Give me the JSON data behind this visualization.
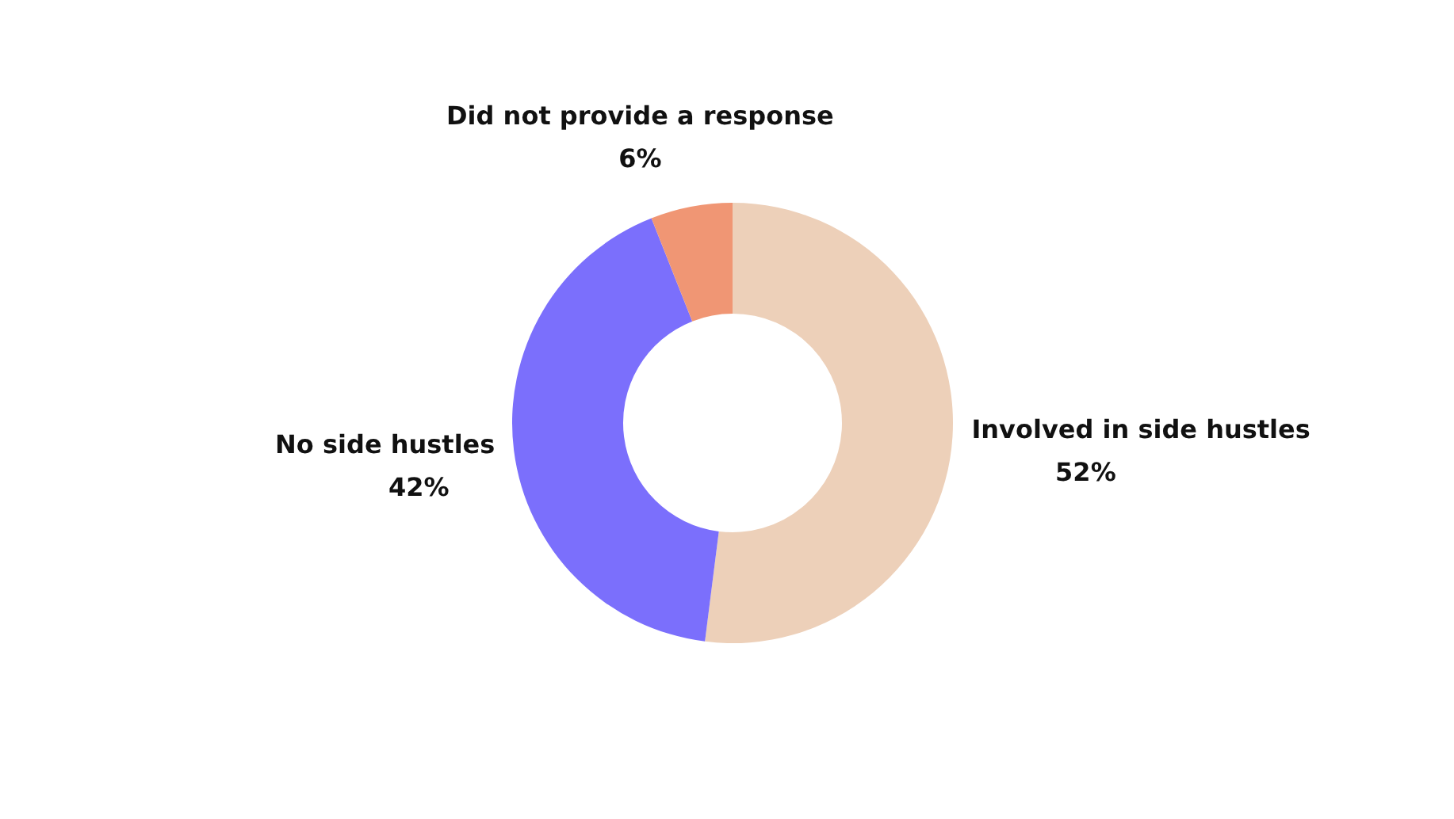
{
  "chart_data": {
    "type": "donut",
    "categories": [
      "Involved in side hustles",
      "No side hustles",
      "Did not provide a response"
    ],
    "values": [
      52,
      42,
      6
    ],
    "colors": [
      "#edd0b9",
      "#7b6ffc",
      "#f09674"
    ],
    "value_labels": [
      "52%",
      "42%",
      "6%"
    ],
    "legend": false
  }
}
